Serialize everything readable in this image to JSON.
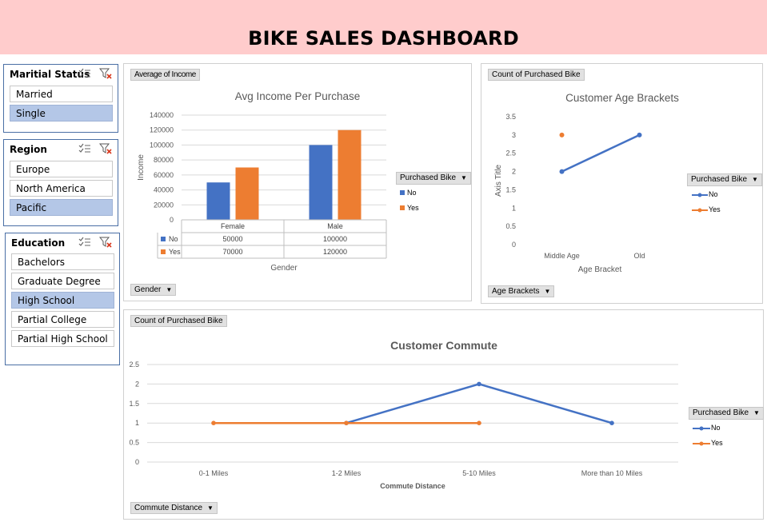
{
  "header": {
    "title": "BIKE SALES DASHBOARD"
  },
  "colors": {
    "banner": "#ffcccc",
    "no": "#4472c4",
    "yes": "#ed7d31",
    "selected": "#b4c7e7"
  },
  "slicers": {
    "marital": {
      "title": "Maritial Status",
      "items": [
        {
          "label": "Married",
          "selected": false
        },
        {
          "label": "Single",
          "selected": true
        }
      ]
    },
    "region": {
      "title": "Region",
      "items": [
        {
          "label": "Europe",
          "selected": false
        },
        {
          "label": "North America",
          "selected": false
        },
        {
          "label": "Pacific",
          "selected": true
        }
      ]
    },
    "education": {
      "title": "Education",
      "items": [
        {
          "label": "Bachelors",
          "selected": false
        },
        {
          "label": "Graduate Degree",
          "selected": false
        },
        {
          "label": "High School",
          "selected": true
        },
        {
          "label": "Partial College",
          "selected": false
        },
        {
          "label": "Partial High School",
          "selected": false
        }
      ]
    }
  },
  "charts": {
    "income": {
      "value_button": "Average of Income",
      "axis_button": "Gender",
      "legend_button": "Purchased Bike",
      "legend": [
        "No",
        "Yes"
      ],
      "table_rows": [
        {
          "label": "No",
          "values": [
            "50000",
            "100000"
          ]
        },
        {
          "label": "Yes",
          "values": [
            "70000",
            "120000"
          ]
        }
      ]
    },
    "age": {
      "value_button": "Count of Purchased Bike",
      "axis_button": "Age Brackets",
      "legend_button": "Purchased Bike",
      "legend": [
        "No",
        "Yes"
      ]
    },
    "commute": {
      "value_button": "Count of Purchased Bike",
      "axis_button": "Commute Distance",
      "legend_button": "Purchased Bike",
      "legend": [
        "No",
        "Yes"
      ]
    }
  },
  "chart_data": [
    {
      "type": "bar",
      "title": "Avg Income Per Purchase",
      "xlabel": "Gender",
      "ylabel": "Income",
      "categories": [
        "Female",
        "Male"
      ],
      "series": [
        {
          "name": "No",
          "values": [
            50000,
            100000
          ]
        },
        {
          "name": "Yes",
          "values": [
            70000,
            120000
          ]
        }
      ],
      "ylim": [
        0,
        140000
      ],
      "yticks": [
        "0",
        "20000",
        "40000",
        "60000",
        "80000",
        "100000",
        "120000",
        "140000"
      ],
      "grid": true,
      "legend": "right"
    },
    {
      "type": "line",
      "title": "Customer Age Brackets",
      "xlabel": "Age Bracket",
      "ylabel": "Axis Title",
      "categories": [
        "Middle Age",
        "Old"
      ],
      "series": [
        {
          "name": "No",
          "values": [
            2,
            3
          ]
        },
        {
          "name": "Yes",
          "values": [
            3,
            null
          ]
        }
      ],
      "ylim": [
        0,
        3.5
      ],
      "yticks": [
        "0",
        "0.5",
        "1",
        "1.5",
        "2",
        "2.5",
        "3",
        "3.5"
      ],
      "grid": false,
      "legend": "right"
    },
    {
      "type": "line",
      "title": "Customer Commute",
      "xlabel": "Commute Distance",
      "ylabel": "",
      "categories": [
        "0-1 Miles",
        "1-2 Miles",
        "5-10 Miles",
        "More than 10 Miles"
      ],
      "series": [
        {
          "name": "No",
          "values": [
            null,
            1,
            2,
            1
          ]
        },
        {
          "name": "Yes",
          "values": [
            1,
            1,
            1,
            null
          ]
        }
      ],
      "ylim": [
        0,
        2.5
      ],
      "yticks": [
        "0",
        "0.5",
        "1",
        "1.5",
        "2",
        "2.5"
      ],
      "grid": true,
      "legend": "right"
    }
  ]
}
